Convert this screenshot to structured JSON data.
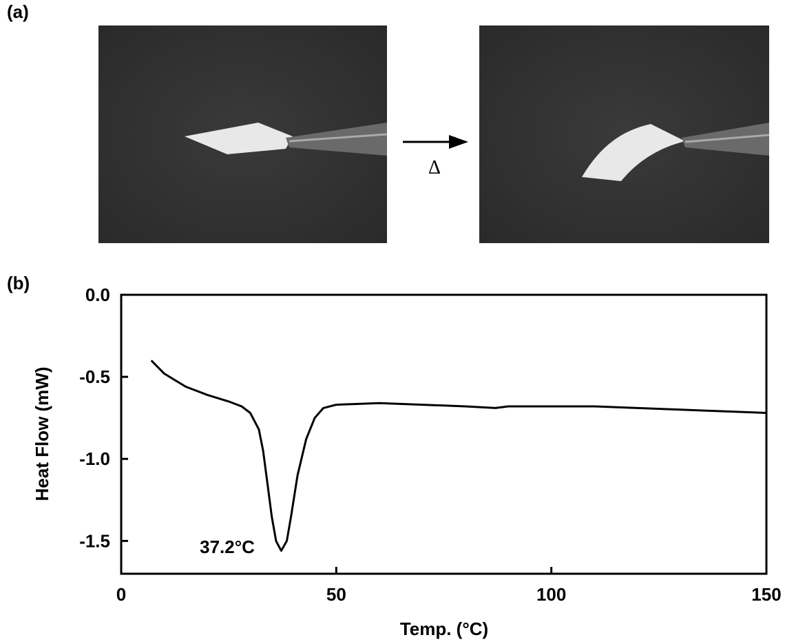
{
  "panel_labels": [
    "(a)",
    "(b)"
  ],
  "arrow_label": "Δ",
  "chart_data": {
    "type": "line",
    "x_label": "Temp. (°C)",
    "y_label": "Heat Flow (mW)",
    "annotation": "37.2°C",
    "color": "#000000",
    "x": [
      7,
      10,
      15,
      20,
      25,
      28,
      30,
      32,
      33,
      34,
      35,
      36,
      37.2,
      38.5,
      39.5,
      41,
      43,
      45,
      47,
      50,
      60,
      70,
      80,
      87,
      90,
      100,
      110,
      120,
      130,
      140,
      150
    ],
    "values": [
      -0.4,
      -0.48,
      -0.56,
      -0.61,
      -0.65,
      -0.68,
      -0.72,
      -0.82,
      -0.95,
      -1.15,
      -1.35,
      -1.5,
      -1.56,
      -1.5,
      -1.35,
      -1.1,
      -0.88,
      -0.75,
      -0.69,
      -0.67,
      -0.66,
      -0.67,
      -0.68,
      -0.69,
      -0.68,
      -0.68,
      -0.68,
      -0.69,
      -0.7,
      -0.71,
      -0.72
    ],
    "xlim": [
      0,
      150
    ],
    "xticks": [
      0,
      50,
      100,
      150
    ],
    "ylim": [
      -1.7,
      0
    ],
    "yticks": [
      {
        "value": 0,
        "label": "0.0"
      },
      -0.5,
      {
        "value": -1,
        "label": "-1.0"
      },
      -1.5
    ]
  }
}
